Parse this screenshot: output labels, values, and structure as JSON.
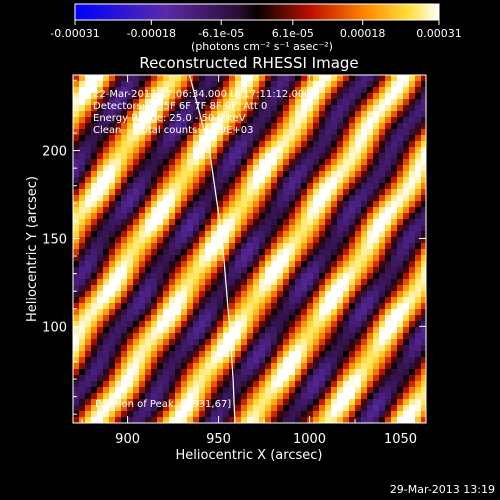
{
  "chart_data": {
    "type": "heatmap",
    "title": "Reconstructed RHESSI Image",
    "xlabel": "Heliocentric X (arcsec)",
    "ylabel": "Heliocentric Y (arcsec)",
    "xlim": [
      870,
      1064
    ],
    "ylim": [
      45,
      243
    ],
    "x_ticks": [
      900,
      950,
      1000,
      1050
    ],
    "y_ticks": [
      100,
      150,
      200
    ],
    "colorbar": {
      "min": -0.00031,
      "max": 0.00031,
      "tick_values": [
        -0.00031,
        -0.00018,
        -6.1e-05,
        6.1e-05,
        0.00018,
        0.00031
      ],
      "tick_labels": [
        "-0.00031",
        "-0.00018",
        "-6.1e-05",
        "6.1e-05",
        "0.00018",
        "0.00031"
      ],
      "units_label": "(photons cm⁻² s⁻¹ asec⁻²)"
    },
    "annotations": {
      "time_range": "22-Mar-2013 17:06:34.000 to 17:11:12.000",
      "detectors": "Detectors: 3F 5F 6F 7F 8F 9F, Att 0",
      "energy_range": "Energy Range: 25.0 - 50.0 keV",
      "clean": "Clean     Total counts: 6.99E+03",
      "peak": "Position of Peak = [931,67]"
    },
    "peak": {
      "x": 931,
      "y": 67
    },
    "limb_curve": [
      [
        934,
        243
      ],
      [
        945,
        200
      ],
      [
        952,
        150
      ],
      [
        956,
        100
      ],
      [
        958,
        70
      ],
      [
        959,
        45
      ]
    ]
  },
  "footer": {
    "date": "29-Mar-2013 13:19"
  }
}
